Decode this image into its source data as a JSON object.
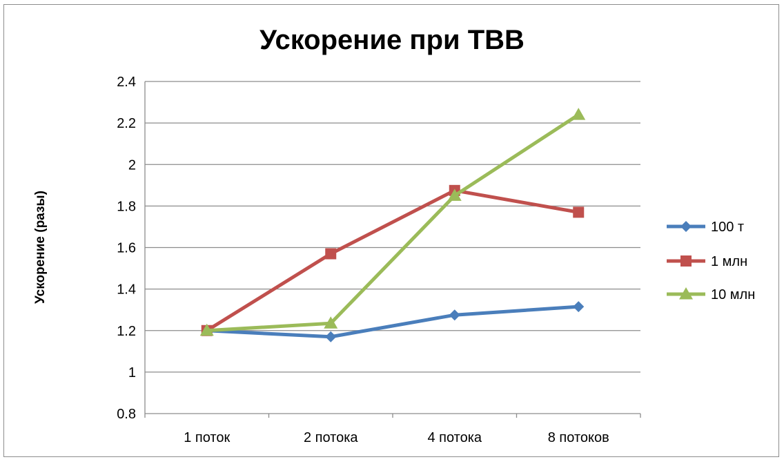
{
  "chart_data": {
    "type": "line",
    "title": "Ускорение при TBB",
    "xlabel": "",
    "ylabel": "Ускорение (разы)",
    "categories": [
      "1 поток",
      "2 потока",
      "4 потока",
      "8 потоков"
    ],
    "ylim": [
      0.8,
      2.4
    ],
    "yticks": [
      "0.8",
      "1",
      "1.2",
      "1.4",
      "1.6",
      "1.8",
      "2",
      "2.2",
      "2.4"
    ],
    "grid": true,
    "legend_position": "right",
    "series": [
      {
        "name": "100 т",
        "values": [
          1.2,
          1.17,
          1.275,
          1.315
        ],
        "color": "#4a7ebb",
        "marker": "diamond"
      },
      {
        "name": "1 млн",
        "values": [
          1.2,
          1.57,
          1.875,
          1.77
        ],
        "color": "#c0504d",
        "marker": "square"
      },
      {
        "name": "10 млн",
        "values": [
          1.2,
          1.235,
          1.85,
          2.24
        ],
        "color": "#9bbb59",
        "marker": "triangle"
      }
    ]
  }
}
